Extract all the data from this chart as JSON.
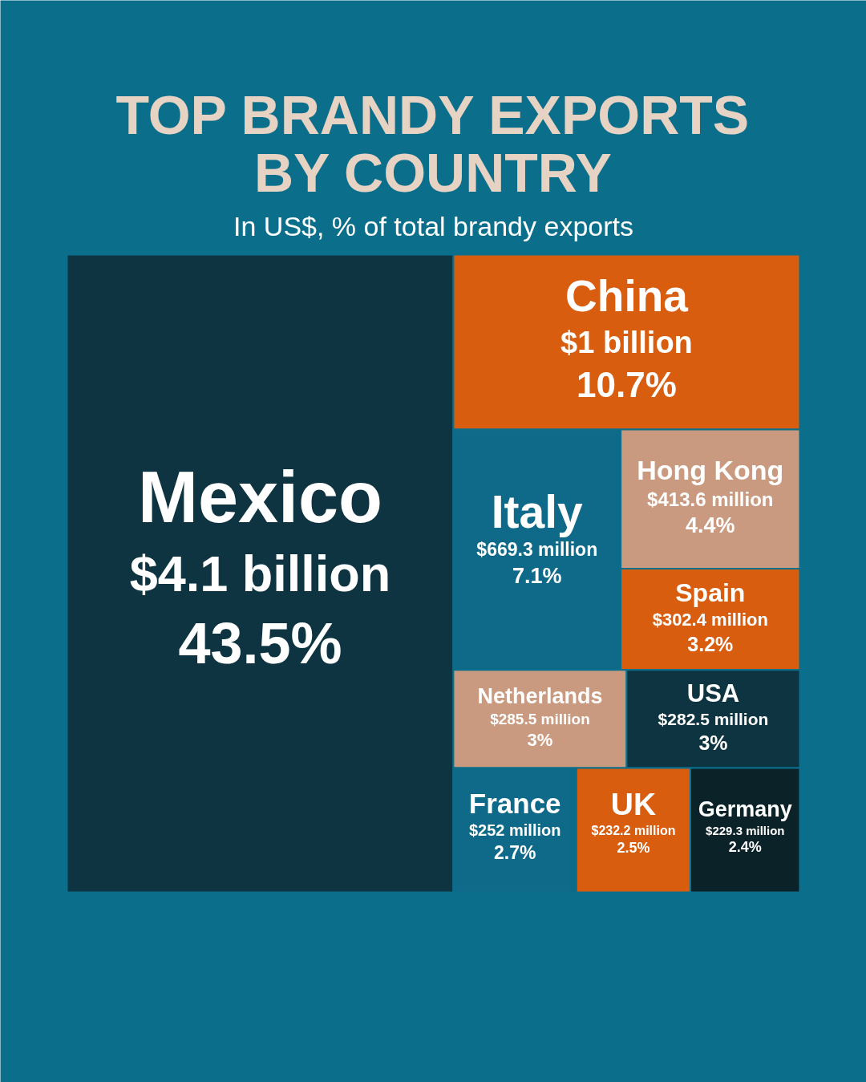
{
  "chart_data": {
    "type": "other",
    "title": "TOP BRANDY EXPORTS BY COUNTRY",
    "subtitle": "In US$, % of total brandy exports",
    "categories": [
      "Mexico",
      "China",
      "Italy",
      "Hong Kong",
      "Spain",
      "Netherlands",
      "USA",
      "France",
      "UK",
      "Germany"
    ],
    "values": [
      43.5,
      10.7,
      7.1,
      4.4,
      3.2,
      3,
      3,
      2.7,
      2.5,
      2.4
    ],
    "value_labels": [
      "43.5%",
      "10.7%",
      "7.1%",
      "4.4%",
      "3.2%",
      "3%",
      "3%",
      "2.7%",
      "2.5%",
      "2.4%"
    ],
    "annotations": [
      "$4.1 billion",
      "$1 billion",
      "$669.3 million",
      "$413.6 million",
      "$302.4 million",
      "$285.5 million",
      "$282.5 million",
      "$252 million",
      "$232.2 million",
      "$229.3 million"
    ],
    "colors": [
      "#0d3440",
      "#d95d0f",
      "#0e6a88",
      "#c99a7f",
      "#d95d0f",
      "#c99a7f",
      "#0d3440",
      "#0e6a88",
      "#d95d0f",
      "#0a2228"
    ]
  }
}
